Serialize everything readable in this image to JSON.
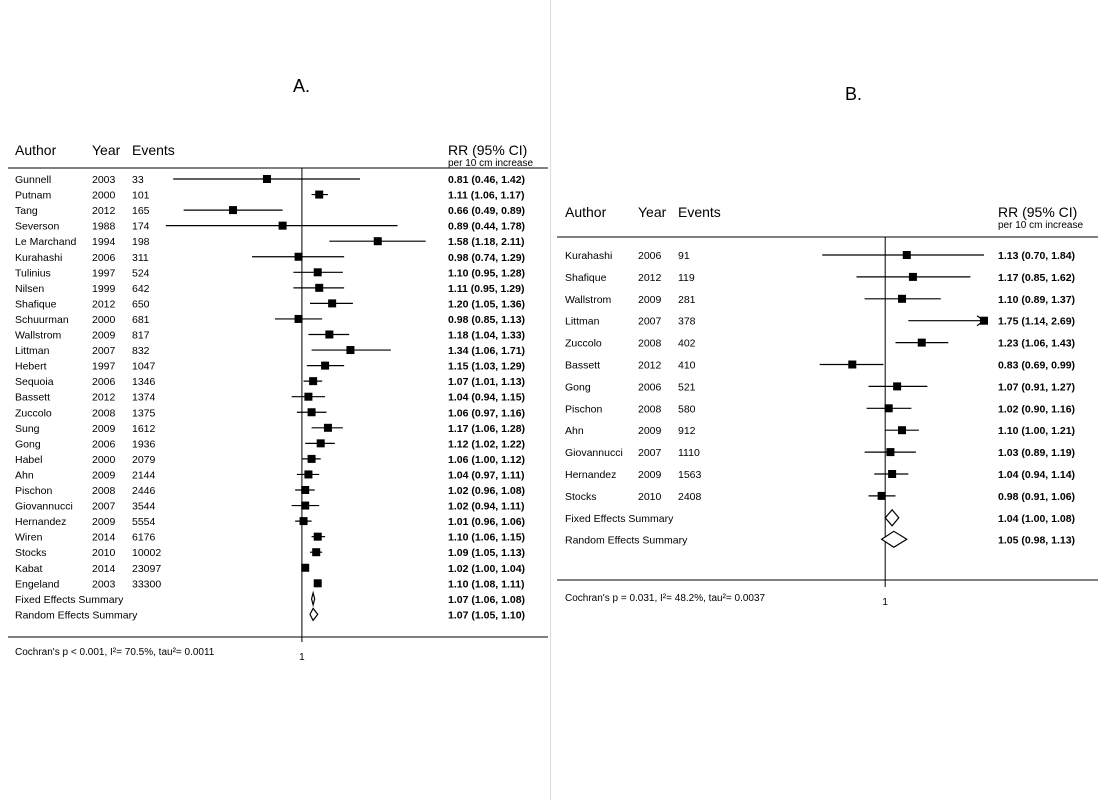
{
  "chart_data": [
    {
      "type": "forest",
      "title": "A.",
      "headers": {
        "author": "Author",
        "year": "Year",
        "events": "Events",
        "rr": "RR (95% CI)",
        "rr_sub": "per 10 cm increase"
      },
      "reference_label": "1",
      "footer": "Cochran's p < 0.001,  I²= 70.5%,  tau²= 0.0011",
      "xlim": [
        0.4,
        2.3
      ],
      "log_scale": true,
      "studies": [
        {
          "author": "Gunnell",
          "year": "2003",
          "events": "33",
          "rr": 0.81,
          "lo": 0.46,
          "hi": 1.42,
          "ci_text": "0.81 (0.46, 1.42)"
        },
        {
          "author": "Putnam",
          "year": "2000",
          "events": "101",
          "rr": 1.11,
          "lo": 1.06,
          "hi": 1.17,
          "ci_text": "1.11 (1.06, 1.17)"
        },
        {
          "author": "Tang",
          "year": "2012",
          "events": "165",
          "rr": 0.66,
          "lo": 0.49,
          "hi": 0.89,
          "ci_text": "0.66 (0.49, 0.89)"
        },
        {
          "author": "Severson",
          "year": "1988",
          "events": "174",
          "rr": 0.89,
          "lo": 0.44,
          "hi": 1.78,
          "ci_text": "0.89 (0.44, 1.78)"
        },
        {
          "author": "Le Marchand",
          "year": "1994",
          "events": "198",
          "rr": 1.58,
          "lo": 1.18,
          "hi": 2.11,
          "ci_text": "1.58 (1.18, 2.11)"
        },
        {
          "author": "Kurahashi",
          "year": "2006",
          "events": "311",
          "rr": 0.98,
          "lo": 0.74,
          "hi": 1.29,
          "ci_text": "0.98 (0.74, 1.29)"
        },
        {
          "author": "Tulinius",
          "year": "1997",
          "events": "524",
          "rr": 1.1,
          "lo": 0.95,
          "hi": 1.28,
          "ci_text": "1.10 (0.95, 1.28)"
        },
        {
          "author": "Nilsen",
          "year": "1999",
          "events": "642",
          "rr": 1.11,
          "lo": 0.95,
          "hi": 1.29,
          "ci_text": "1.11 (0.95, 1.29)"
        },
        {
          "author": "Shafique",
          "year": "2012",
          "events": "650",
          "rr": 1.2,
          "lo": 1.05,
          "hi": 1.36,
          "ci_text": "1.20 (1.05, 1.36)"
        },
        {
          "author": "Schuurman",
          "year": "2000",
          "events": "681",
          "rr": 0.98,
          "lo": 0.85,
          "hi": 1.13,
          "ci_text": "0.98 (0.85, 1.13)"
        },
        {
          "author": "Wallstrom",
          "year": "2009",
          "events": "817",
          "rr": 1.18,
          "lo": 1.04,
          "hi": 1.33,
          "ci_text": "1.18 (1.04, 1.33)"
        },
        {
          "author": "Littman",
          "year": "2007",
          "events": "832",
          "rr": 1.34,
          "lo": 1.06,
          "hi": 1.71,
          "ci_text": "1.34 (1.06, 1.71)"
        },
        {
          "author": "Hebert",
          "year": "1997",
          "events": "1047",
          "rr": 1.15,
          "lo": 1.03,
          "hi": 1.29,
          "ci_text": "1.15 (1.03, 1.29)"
        },
        {
          "author": "Sequoia",
          "year": "2006",
          "events": "1346",
          "rr": 1.07,
          "lo": 1.01,
          "hi": 1.13,
          "ci_text": "1.07 (1.01, 1.13)"
        },
        {
          "author": "Bassett",
          "year": "2012",
          "events": "1374",
          "rr": 1.04,
          "lo": 0.94,
          "hi": 1.15,
          "ci_text": "1.04 (0.94, 1.15)"
        },
        {
          "author": "Zuccolo",
          "year": "2008",
          "events": "1375",
          "rr": 1.06,
          "lo": 0.97,
          "hi": 1.16,
          "ci_text": "1.06 (0.97, 1.16)"
        },
        {
          "author": "Sung",
          "year": "2009",
          "events": "1612",
          "rr": 1.17,
          "lo": 1.06,
          "hi": 1.28,
          "ci_text": "1.17 (1.06, 1.28)"
        },
        {
          "author": "Gong",
          "year": "2006",
          "events": "1936",
          "rr": 1.12,
          "lo": 1.02,
          "hi": 1.22,
          "ci_text": "1.12 (1.02, 1.22)"
        },
        {
          "author": "Habel",
          "year": "2000",
          "events": "2079",
          "rr": 1.06,
          "lo": 1.0,
          "hi": 1.12,
          "ci_text": "1.06 (1.00, 1.12)"
        },
        {
          "author": "Ahn",
          "year": "2009",
          "events": "2144",
          "rr": 1.04,
          "lo": 0.97,
          "hi": 1.11,
          "ci_text": "1.04 (0.97, 1.11)"
        },
        {
          "author": "Pischon",
          "year": "2008",
          "events": "2446",
          "rr": 1.02,
          "lo": 0.96,
          "hi": 1.08,
          "ci_text": "1.02 (0.96, 1.08)"
        },
        {
          "author": "Giovannucci",
          "year": "2007",
          "events": "3544",
          "rr": 1.02,
          "lo": 0.94,
          "hi": 1.11,
          "ci_text": "1.02 (0.94, 1.11)"
        },
        {
          "author": "Hernandez",
          "year": "2009",
          "events": "5554",
          "rr": 1.01,
          "lo": 0.96,
          "hi": 1.06,
          "ci_text": "1.01 (0.96, 1.06)"
        },
        {
          "author": "Wiren",
          "year": "2014",
          "events": "6176",
          "rr": 1.1,
          "lo": 1.06,
          "hi": 1.15,
          "ci_text": "1.10 (1.06, 1.15)"
        },
        {
          "author": "Stocks",
          "year": "2010",
          "events": "10002",
          "rr": 1.09,
          "lo": 1.05,
          "hi": 1.13,
          "ci_text": "1.09 (1.05, 1.13)"
        },
        {
          "author": "Kabat",
          "year": "2014",
          "events": "23097",
          "rr": 1.02,
          "lo": 1.0,
          "hi": 1.04,
          "ci_text": "1.02 (1.00, 1.04)"
        },
        {
          "author": "Engeland",
          "year": "2003",
          "events": "33300",
          "rr": 1.1,
          "lo": 1.08,
          "hi": 1.11,
          "ci_text": "1.10 (1.08, 1.11)"
        }
      ],
      "summaries": [
        {
          "label": "Fixed Effects Summary",
          "rr": 1.07,
          "lo": 1.06,
          "hi": 1.08,
          "ci_text": "1.07 (1.06, 1.08)"
        },
        {
          "label": "Random Effects Summary",
          "rr": 1.07,
          "lo": 1.05,
          "hi": 1.1,
          "ci_text": "1.07 (1.05, 1.10)"
        }
      ]
    },
    {
      "type": "forest",
      "title": "B.",
      "headers": {
        "author": "Author",
        "year": "Year",
        "events": "Events",
        "rr": "RR (95% CI)",
        "rr_sub": "per 10 cm increase"
      },
      "reference_label": "1",
      "footer": "Cochran's p = 0.031,  I²= 48.2%,  tau²= 0.0037",
      "xlim": [
        0.6,
        1.75
      ],
      "log_scale": true,
      "studies": [
        {
          "author": "Kurahashi",
          "year": "2006",
          "events": "91",
          "rr": 1.13,
          "lo": 0.7,
          "hi": 1.84,
          "ci_text": "1.13 (0.70, 1.84)"
        },
        {
          "author": "Shafique",
          "year": "2012",
          "events": "119",
          "rr": 1.17,
          "lo": 0.85,
          "hi": 1.62,
          "ci_text": "1.17 (0.85, 1.62)"
        },
        {
          "author": "Wallstrom",
          "year": "2009",
          "events": "281",
          "rr": 1.1,
          "lo": 0.89,
          "hi": 1.37,
          "ci_text": "1.10 (0.89, 1.37)"
        },
        {
          "author": "Littman",
          "year": "2007",
          "events": "378",
          "rr": 1.75,
          "lo": 1.14,
          "hi": 2.69,
          "ci_text": "1.75 (1.14, 2.69)",
          "arrow": true
        },
        {
          "author": "Zuccolo",
          "year": "2008",
          "events": "402",
          "rr": 1.23,
          "lo": 1.06,
          "hi": 1.43,
          "ci_text": "1.23 (1.06, 1.43)"
        },
        {
          "author": "Bassett",
          "year": "2012",
          "events": "410",
          "rr": 0.83,
          "lo": 0.69,
          "hi": 0.99,
          "ci_text": "0.83 (0.69, 0.99)"
        },
        {
          "author": "Gong",
          "year": "2006",
          "events": "521",
          "rr": 1.07,
          "lo": 0.91,
          "hi": 1.27,
          "ci_text": "1.07 (0.91, 1.27)"
        },
        {
          "author": "Pischon",
          "year": "2008",
          "events": "580",
          "rr": 1.02,
          "lo": 0.9,
          "hi": 1.16,
          "ci_text": "1.02 (0.90, 1.16)"
        },
        {
          "author": "Ahn",
          "year": "2009",
          "events": "912",
          "rr": 1.1,
          "lo": 1.0,
          "hi": 1.21,
          "ci_text": "1.10 (1.00, 1.21)"
        },
        {
          "author": "Giovannucci",
          "year": "2007",
          "events": "1110",
          "rr": 1.03,
          "lo": 0.89,
          "hi": 1.19,
          "ci_text": "1.03 (0.89, 1.19)"
        },
        {
          "author": "Hernandez",
          "year": "2009",
          "events": "1563",
          "rr": 1.04,
          "lo": 0.94,
          "hi": 1.14,
          "ci_text": "1.04 (0.94, 1.14)"
        },
        {
          "author": "Stocks",
          "year": "2010",
          "events": "2408",
          "rr": 0.98,
          "lo": 0.91,
          "hi": 1.06,
          "ci_text": "0.98 (0.91, 1.06)"
        }
      ],
      "summaries": [
        {
          "label": "Fixed Effects Summary",
          "rr": 1.04,
          "lo": 1.0,
          "hi": 1.08,
          "ci_text": "1.04 (1.00, 1.08)"
        },
        {
          "label": "Random Effects Summary",
          "rr": 1.05,
          "lo": 0.98,
          "hi": 1.13,
          "ci_text": "1.05 (0.98, 1.13)"
        }
      ]
    }
  ]
}
